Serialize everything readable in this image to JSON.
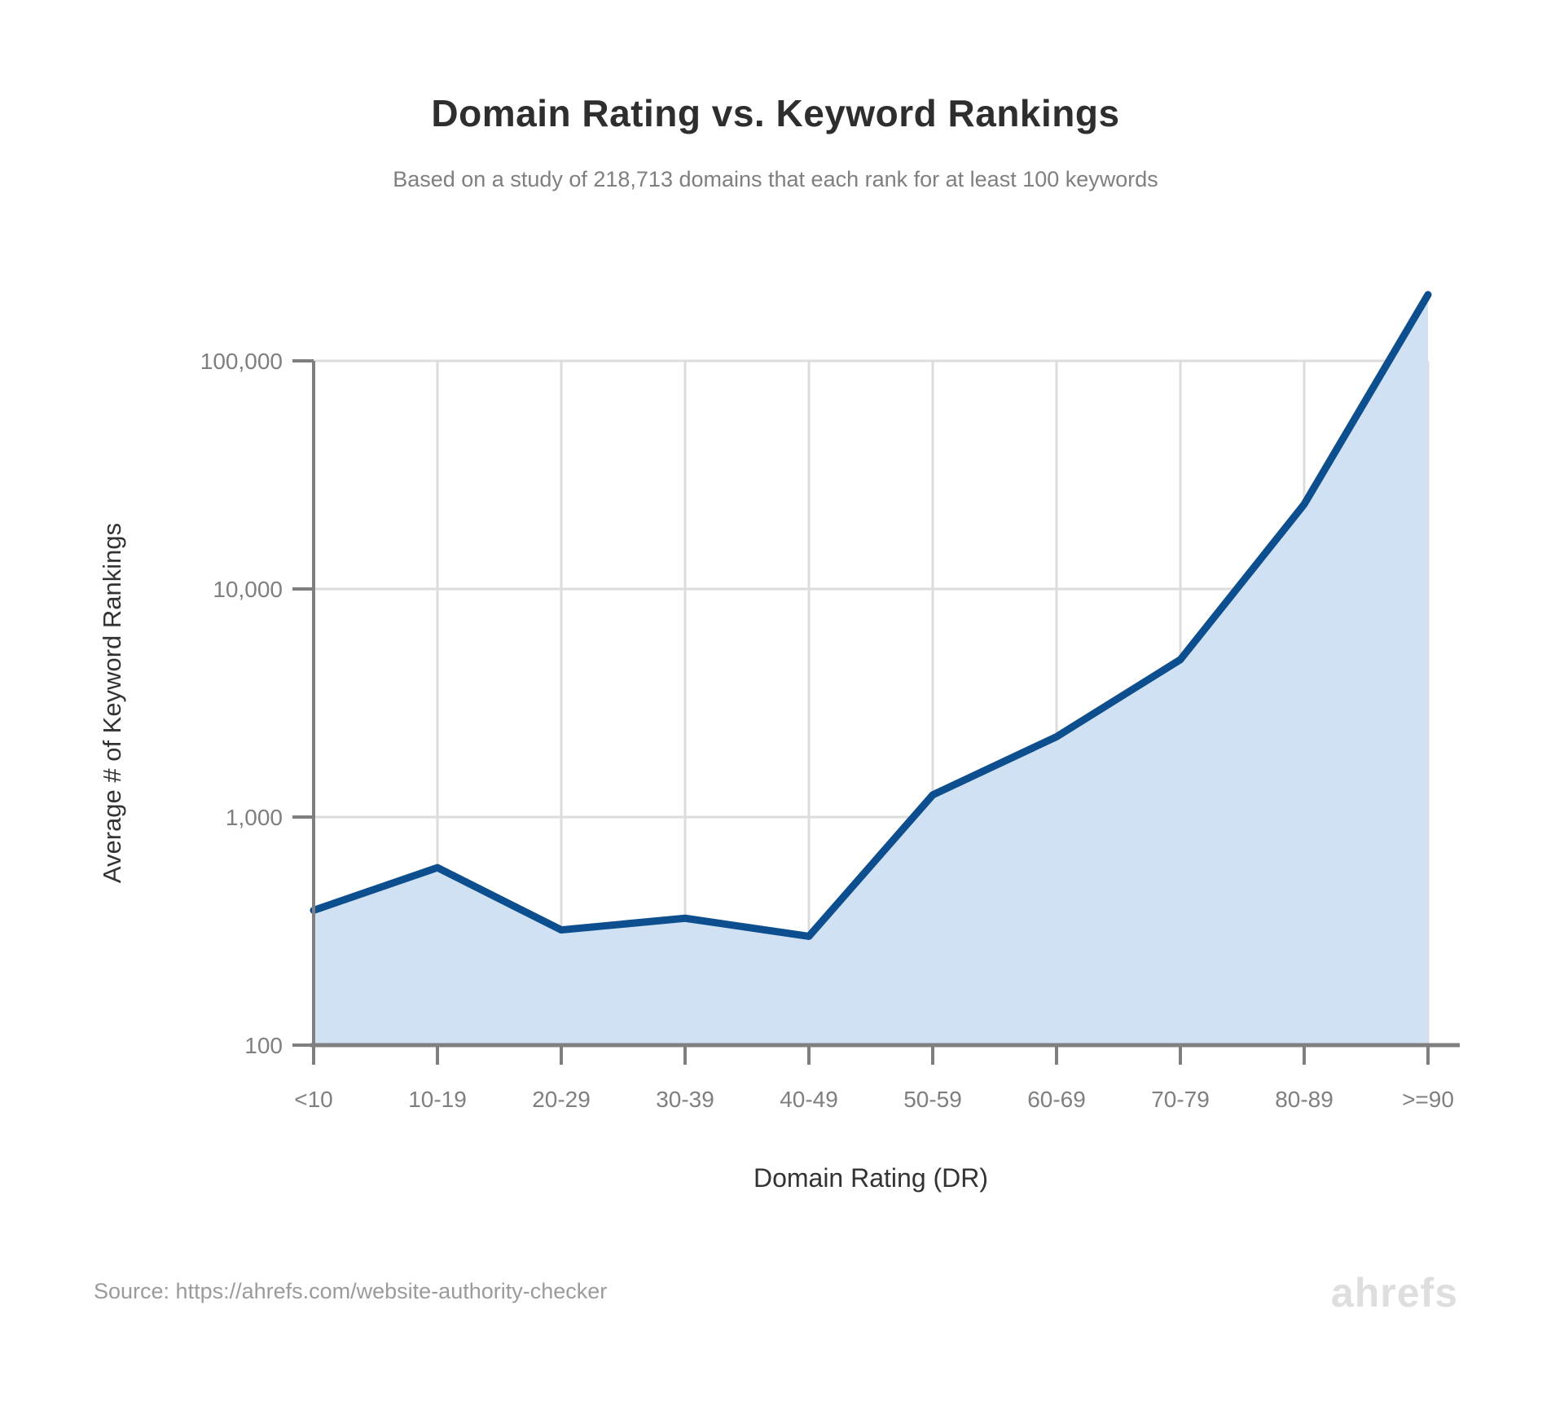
{
  "header": {
    "title": "Domain Rating vs. Keyword Rankings",
    "subtitle": "Based on a study of 218,713 domains that each rank for at least 100 keywords"
  },
  "chart_data": {
    "type": "area",
    "categories": [
      "<10",
      "10-19",
      "20-29",
      "30-39",
      "40-49",
      "50-59",
      "60-69",
      "70-79",
      "80-89",
      ">=90"
    ],
    "values": [
      390,
      600,
      320,
      360,
      300,
      1250,
      2250,
      4900,
      23500,
      195000
    ],
    "title": "Domain Rating vs. Keyword Rankings",
    "xlabel": "Domain Rating (DR)",
    "ylabel": "Average # of Keyword Rankings",
    "y_scale": "log",
    "ylim": [
      100,
      300000
    ],
    "y_ticks": [
      100,
      1000,
      10000,
      100000
    ],
    "y_tick_labels": [
      "100",
      "1,000",
      "10,000",
      "100,000"
    ],
    "grid": true,
    "legend": false,
    "colors": {
      "line": "#0d4f8e",
      "fill": "#cfe1f3",
      "grid": "#dcdcdc",
      "axis": "#7f7f7f",
      "tick_text": "#7f7f7f"
    }
  },
  "footer": {
    "source": "Source: https://ahrefs.com/website-authority-checker",
    "logo": "ahrefs"
  }
}
